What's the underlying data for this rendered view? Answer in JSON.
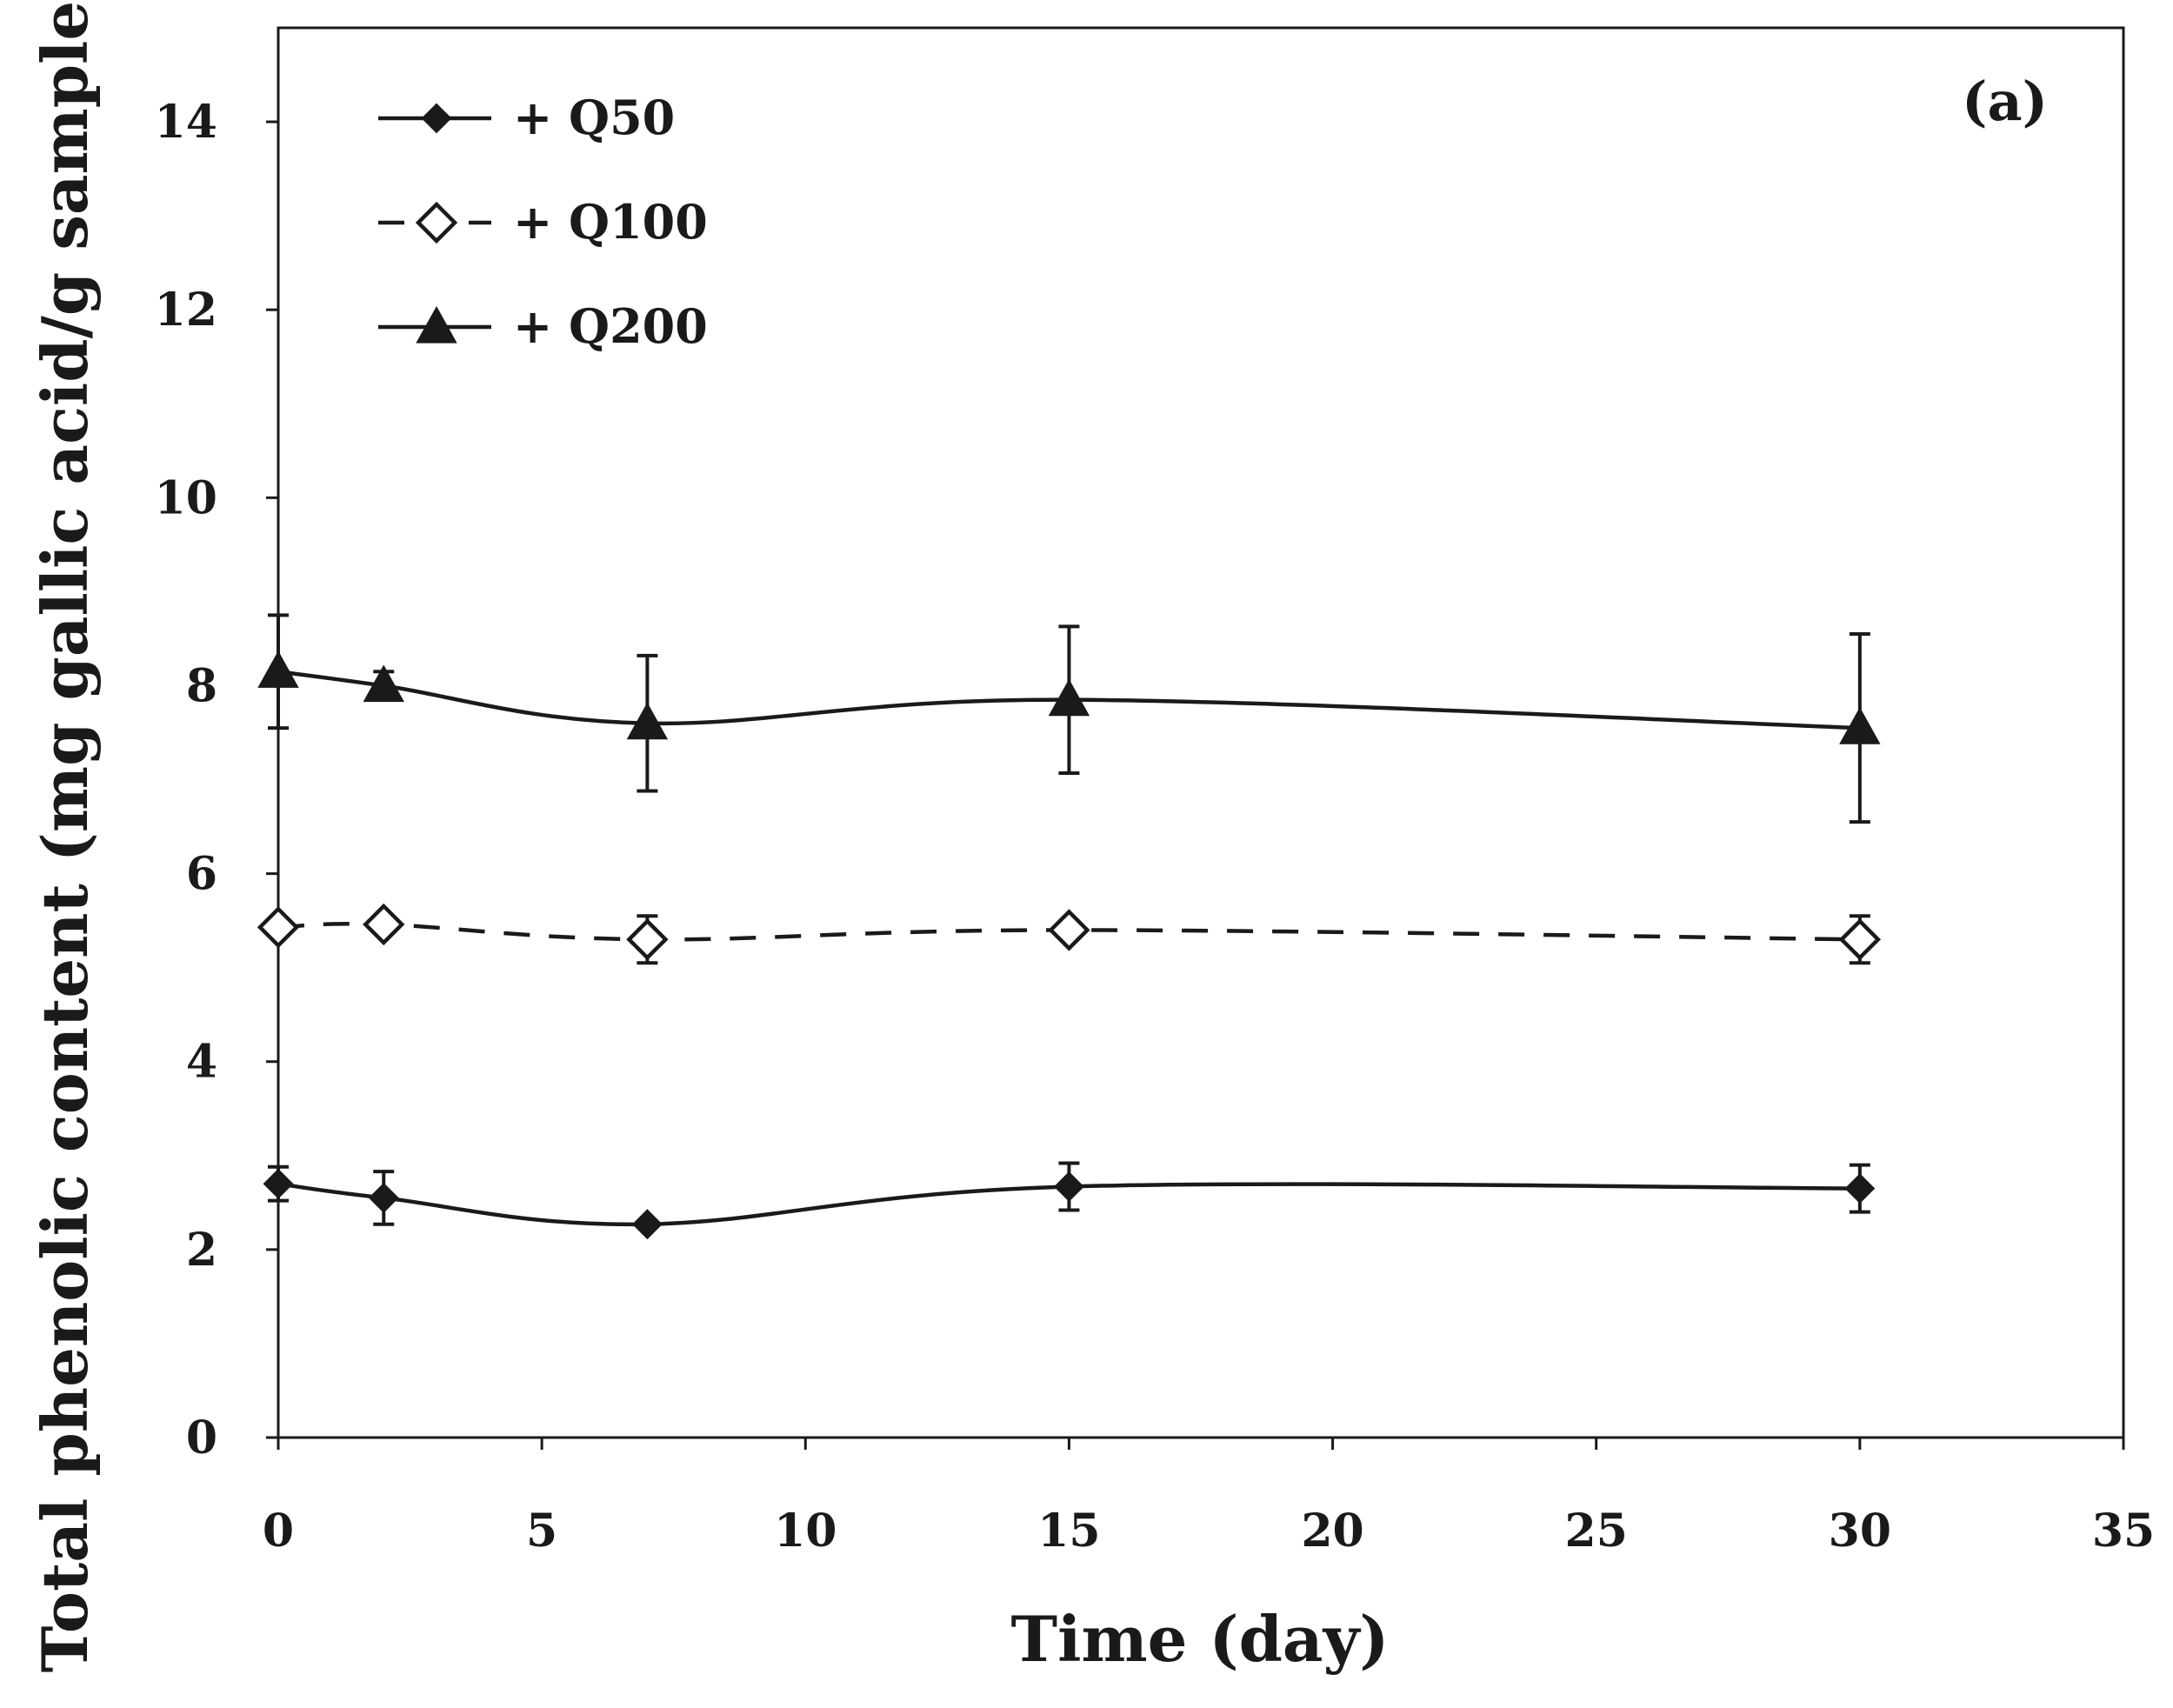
{
  "chart_data": {
    "type": "line",
    "panel_label": "(a)",
    "xlabel": "Time (day)",
    "ylabel": "Total  phenolic content (mg gallic acid/g sample)",
    "xlim": [
      0,
      35
    ],
    "ylim": [
      0,
      15
    ],
    "x_ticks": [
      0,
      5,
      10,
      15,
      20,
      25,
      30,
      35
    ],
    "x_tick_labels": [
      "0",
      "5",
      "10",
      "15",
      "20",
      "25",
      "30",
      "35"
    ],
    "y_ticks": [
      0,
      2,
      4,
      6,
      8,
      10,
      12,
      14
    ],
    "y_tick_labels": [
      "0",
      "2",
      "4",
      "6",
      "8",
      "10",
      "12",
      "14"
    ],
    "grid": false,
    "legend_position": "top-left",
    "x": [
      0,
      2,
      7,
      15,
      30
    ],
    "series": [
      {
        "name": "+ Q50",
        "marker": "diamond-filled",
        "line_style": "solid",
        "values": [
          2.7,
          2.55,
          2.27,
          2.67,
          2.65
        ],
        "errors": [
          0.18,
          0.28,
          0.0,
          0.25,
          0.25
        ]
      },
      {
        "name": "+ Q100",
        "marker": "diamond-open",
        "line_style": "dashed",
        "values": [
          5.43,
          5.46,
          5.3,
          5.4,
          5.3
        ],
        "errors": [
          0.0,
          0.0,
          0.25,
          0.0,
          0.25
        ]
      },
      {
        "name": "+ Q200",
        "marker": "triangle-filled",
        "line_style": "solid",
        "values": [
          8.15,
          8.0,
          7.6,
          7.85,
          7.55
        ],
        "errors": [
          0.6,
          0.15,
          0.72,
          0.78,
          1.0
        ]
      }
    ],
    "colors": {
      "ink": "#1a1a1a",
      "background": "#ffffff"
    }
  }
}
